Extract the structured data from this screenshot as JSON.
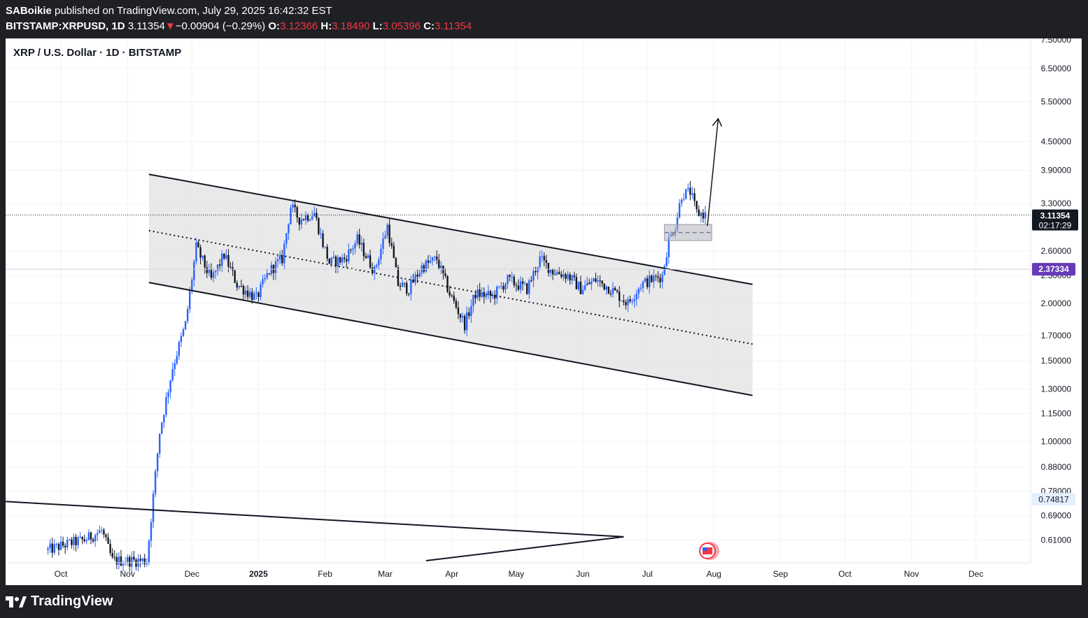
{
  "header": {
    "publisher": "SABoikie",
    "published_text": "published on TradingView.com, July 29, 2025 16:42:32 EST",
    "symbol": "BITSTAMP:XRPUSD, 1D",
    "last": "3.11354",
    "change_arrow": "▼",
    "change": "−0.00904 (−0.29%)",
    "o_label": "O:",
    "o": "3.12366",
    "h_label": "H:",
    "h": "3.18490",
    "l_label": "L:",
    "l": "3.05396",
    "c_label": "C:",
    "c": "3.11354"
  },
  "legend_title": "XRP / U.S. Dollar · 1D · BITSTAMP",
  "footer": {
    "brand": "TradingView",
    "logo_icon": "tradingview-logo-icon"
  },
  "colors": {
    "up": "#2962ff",
    "down": "#131722",
    "price_badge": "#131722",
    "ref_badge": "#673ab7",
    "zone": "#e3e3e3"
  },
  "chart_data": {
    "type": "candlestick",
    "title": "XRP / U.S. Dollar · 1D · BITSTAMP",
    "scale": "log",
    "ylim": [
      0.55,
      7.5
    ],
    "x_ticks": [
      "Oct",
      "Nov",
      "Dec",
      "2025",
      "Feb",
      "Mar",
      "Apr",
      "May",
      "Jun",
      "Jul",
      "Aug",
      "Sep",
      "Oct",
      "Nov",
      "Dec"
    ],
    "x_tick_dates": [
      "2024-10-01",
      "2024-11-01",
      "2024-12-01",
      "2025-01-01",
      "2025-02-01",
      "2025-03-01",
      "2025-04-01",
      "2025-05-01",
      "2025-06-01",
      "2025-07-01",
      "2025-08-01",
      "2025-09-01",
      "2025-10-01",
      "2025-11-01",
      "2025-12-01"
    ],
    "y_ticks": [
      7.5,
      6.5,
      5.5,
      4.5,
      3.9,
      3.3,
      2.6,
      2.3,
      2.0,
      1.7,
      1.5,
      1.3,
      1.15,
      1.0,
      0.88,
      0.78,
      0.69,
      0.61
    ],
    "y_tick_labels": [
      "7.50000",
      "6.50000",
      "5.50000",
      "4.50000",
      "3.90000",
      "3.30000",
      "2.60000",
      "2.30000",
      "2.00000",
      "1.70000",
      "1.50000",
      "1.30000",
      "1.15000",
      "1.00000",
      "0.88000",
      "0.78000",
      "0.69000",
      "0.61000"
    ],
    "last_price": 3.11354,
    "last_price_label": "3.11354",
    "countdown": "02:17:29",
    "reference_price": 2.37334,
    "reference_price_label": "2.37334",
    "low_marker": 0.74817,
    "low_marker_label": "0.74817",
    "price_path": [
      [
        "2024-09-25",
        0.58
      ],
      [
        "2024-10-05",
        0.6
      ],
      [
        "2024-10-12",
        0.61
      ],
      [
        "2024-10-20",
        0.64
      ],
      [
        "2024-10-25",
        0.55
      ],
      [
        "2024-11-10",
        0.55
      ],
      [
        "2024-11-16",
        1.05
      ],
      [
        "2024-11-22",
        1.45
      ],
      [
        "2024-11-28",
        1.8
      ],
      [
        "2024-12-03",
        2.65
      ],
      [
        "2024-12-10",
        2.25
      ],
      [
        "2024-12-16",
        2.55
      ],
      [
        "2024-12-22",
        2.2
      ],
      [
        "2024-12-31",
        2.05
      ],
      [
        "2025-01-06",
        2.35
      ],
      [
        "2025-01-12",
        2.5
      ],
      [
        "2025-01-16",
        3.25
      ],
      [
        "2025-01-20",
        3.05
      ],
      [
        "2025-01-27",
        3.15
      ],
      [
        "2025-01-31",
        2.7
      ],
      [
        "2025-02-03",
        2.45
      ],
      [
        "2025-02-10",
        2.5
      ],
      [
        "2025-02-16",
        2.75
      ],
      [
        "2025-02-24",
        2.35
      ],
      [
        "2025-03-02",
        2.95
      ],
      [
        "2025-03-07",
        2.2
      ],
      [
        "2025-03-12",
        2.15
      ],
      [
        "2025-03-18",
        2.4
      ],
      [
        "2025-03-25",
        2.5
      ],
      [
        "2025-03-31",
        2.1
      ],
      [
        "2025-04-07",
        1.8
      ],
      [
        "2025-04-12",
        2.1
      ],
      [
        "2025-04-20",
        2.07
      ],
      [
        "2025-04-27",
        2.25
      ],
      [
        "2025-05-06",
        2.15
      ],
      [
        "2025-05-12",
        2.5
      ],
      [
        "2025-05-18",
        2.35
      ],
      [
        "2025-05-25",
        2.3
      ],
      [
        "2025-05-31",
        2.15
      ],
      [
        "2025-06-07",
        2.25
      ],
      [
        "2025-06-14",
        2.15
      ],
      [
        "2025-06-22",
        2.0
      ],
      [
        "2025-06-28",
        2.2
      ],
      [
        "2025-07-03",
        2.25
      ],
      [
        "2025-07-08",
        2.3
      ],
      [
        "2025-07-11",
        2.75
      ],
      [
        "2025-07-14",
        2.95
      ],
      [
        "2025-07-17",
        3.45
      ],
      [
        "2025-07-21",
        3.5
      ],
      [
        "2025-07-24",
        3.15
      ],
      [
        "2025-07-29",
        3.11354
      ]
    ],
    "annotations": {
      "channel_upper": [
        [
          "2024-11-11",
          3.82
        ],
        [
          "2025-08-19",
          2.2
        ]
      ],
      "channel_mid": [
        [
          "2024-11-11",
          2.88
        ],
        [
          "2025-08-19",
          1.63
        ]
      ],
      "channel_lower": [
        [
          "2024-11-11",
          2.22
        ],
        [
          "2025-08-19",
          1.26
        ]
      ],
      "triangle_upper": [
        [
          "2024-09-20",
          0.74
        ],
        [
          "2025-06-20",
          0.62
        ]
      ],
      "triangle_lower": [
        [
          "2025-03-20",
          0.55
        ],
        [
          "2025-06-20",
          0.62
        ]
      ],
      "retest_zone": {
        "from": "2025-07-09",
        "to": "2025-07-31",
        "top": 2.97,
        "bottom": 2.74
      },
      "projection_arrow": [
        [
          "2025-07-29",
          2.95
        ],
        [
          "2025-08-03",
          5.05
        ]
      ]
    }
  }
}
